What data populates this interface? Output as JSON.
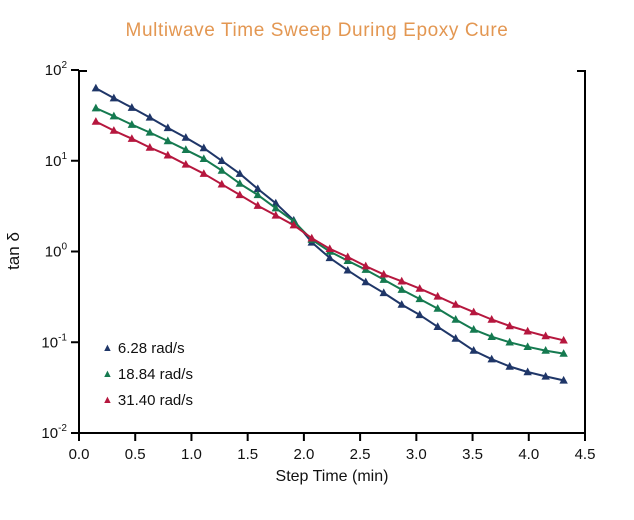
{
  "chart_data": {
    "type": "line",
    "title": "Multiwave Time Sweep During Epoxy Cure",
    "xlabel": "Step Time (min)",
    "ylabel": "tan δ",
    "x_scale": "linear",
    "y_scale": "log",
    "xlim": [
      0.0,
      4.5
    ],
    "ylim_log_exponents": [
      -2,
      2
    ],
    "x_ticks": [
      "0.0",
      "0.5",
      "1.0",
      "1.5",
      "2.0",
      "2.5",
      "3.0",
      "3.5",
      "4.0",
      "4.5"
    ],
    "y_tick_exponents": [
      2,
      1,
      0,
      -1,
      -2
    ],
    "y_tick_base": "10",
    "grid": "off",
    "legend_position": "inside-bottom-left",
    "x": [
      0.15,
      0.31,
      0.47,
      0.63,
      0.79,
      0.95,
      1.11,
      1.27,
      1.43,
      1.59,
      1.75,
      1.91,
      2.07,
      2.23,
      2.39,
      2.55,
      2.71,
      2.87,
      3.03,
      3.19,
      3.35,
      3.51,
      3.67,
      3.83,
      3.99,
      4.15,
      4.31
    ],
    "series": [
      {
        "name": "6.28 rad/s",
        "color": "#1F3668",
        "marker": "triangle-up",
        "values": [
          63,
          49,
          38.5,
          30,
          23,
          18,
          13.8,
          10,
          7.2,
          4.9,
          3.4,
          2.2,
          1.26,
          0.85,
          0.62,
          0.46,
          0.35,
          0.26,
          0.2,
          0.148,
          0.11,
          0.081,
          0.065,
          0.054,
          0.047,
          0.042,
          0.038
        ]
      },
      {
        "name": "18.84 rad/s",
        "color": "#157A50",
        "marker": "triangle-up",
        "values": [
          38,
          31,
          25,
          20.5,
          16.5,
          13.2,
          10.5,
          7.8,
          5.6,
          4.2,
          3.0,
          2.15,
          1.35,
          1.0,
          0.79,
          0.63,
          0.49,
          0.38,
          0.3,
          0.235,
          0.178,
          0.138,
          0.115,
          0.1,
          0.089,
          0.081,
          0.075
        ]
      },
      {
        "name": "31.40 rad/s",
        "color": "#B6173E",
        "marker": "triangle-up",
        "values": [
          27,
          21.5,
          17.5,
          14,
          11.5,
          9.1,
          7.2,
          5.5,
          4.2,
          3.2,
          2.5,
          1.95,
          1.4,
          1.07,
          0.87,
          0.69,
          0.56,
          0.47,
          0.39,
          0.32,
          0.26,
          0.215,
          0.178,
          0.151,
          0.132,
          0.117,
          0.105
        ]
      }
    ],
    "colors": {
      "title": "#E39752",
      "axis": "#000000",
      "tick_label": "#111111"
    }
  }
}
